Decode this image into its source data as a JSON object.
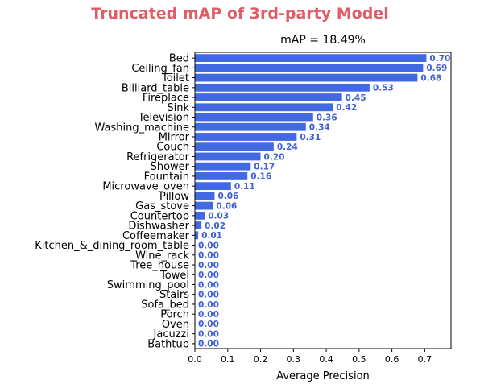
{
  "banner": "Truncated mAP of 3rd-party Model",
  "chart_data": {
    "type": "bar",
    "orientation": "horizontal",
    "title": "mAP = 18.49%",
    "xlabel": "Average Precision",
    "ylabel": "",
    "xlim": [
      0,
      0.78
    ],
    "xticks": [
      "0.0",
      "0.1",
      "0.2",
      "0.3",
      "0.4",
      "0.5",
      "0.6",
      "0.7"
    ],
    "grid": false,
    "bar_color": "#4169e1",
    "label_color": "#3f5fd8",
    "categories": [
      "Bed",
      "Ceiling_fan",
      "Toilet",
      "Billiard_table",
      "Fireplace",
      "Sink",
      "Television",
      "Washing_machine",
      "Mirror",
      "Couch",
      "Refrigerator",
      "Shower",
      "Fountain",
      "Microwave_oven",
      "Pillow",
      "Gas_stove",
      "Countertop",
      "Dishwasher",
      "Coffeemaker",
      "Kitchen_&_dining_room_table",
      "Wine_rack",
      "Tree_house",
      "Towel",
      "Swimming_pool",
      "Stairs",
      "Sofa_bed",
      "Porch",
      "Oven",
      "Jacuzzi",
      "Bathtub"
    ],
    "values": [
      0.705,
      0.695,
      0.678,
      0.532,
      0.448,
      0.42,
      0.36,
      0.338,
      0.31,
      0.24,
      0.2,
      0.17,
      0.16,
      0.11,
      0.06,
      0.055,
      0.03,
      0.02,
      0.01,
      0.0,
      0.0,
      0.0,
      0.0,
      0.0,
      0.0,
      0.0,
      0.0,
      0.0,
      0.0,
      0.0
    ],
    "value_labels": [
      "0.70",
      "0.69",
      "0.68",
      "0.53",
      "0.45",
      "0.42",
      "0.36",
      "0.34",
      "0.31",
      "0.24",
      "0.20",
      "0.17",
      "0.16",
      "0.11",
      "0.06",
      "0.06",
      "0.03",
      "0.02",
      "0.01",
      "0.00",
      "0.00",
      "0.00",
      "0.00",
      "0.00",
      "0.00",
      "0.00",
      "0.00",
      "0.00",
      "0.00",
      "0.00"
    ]
  }
}
